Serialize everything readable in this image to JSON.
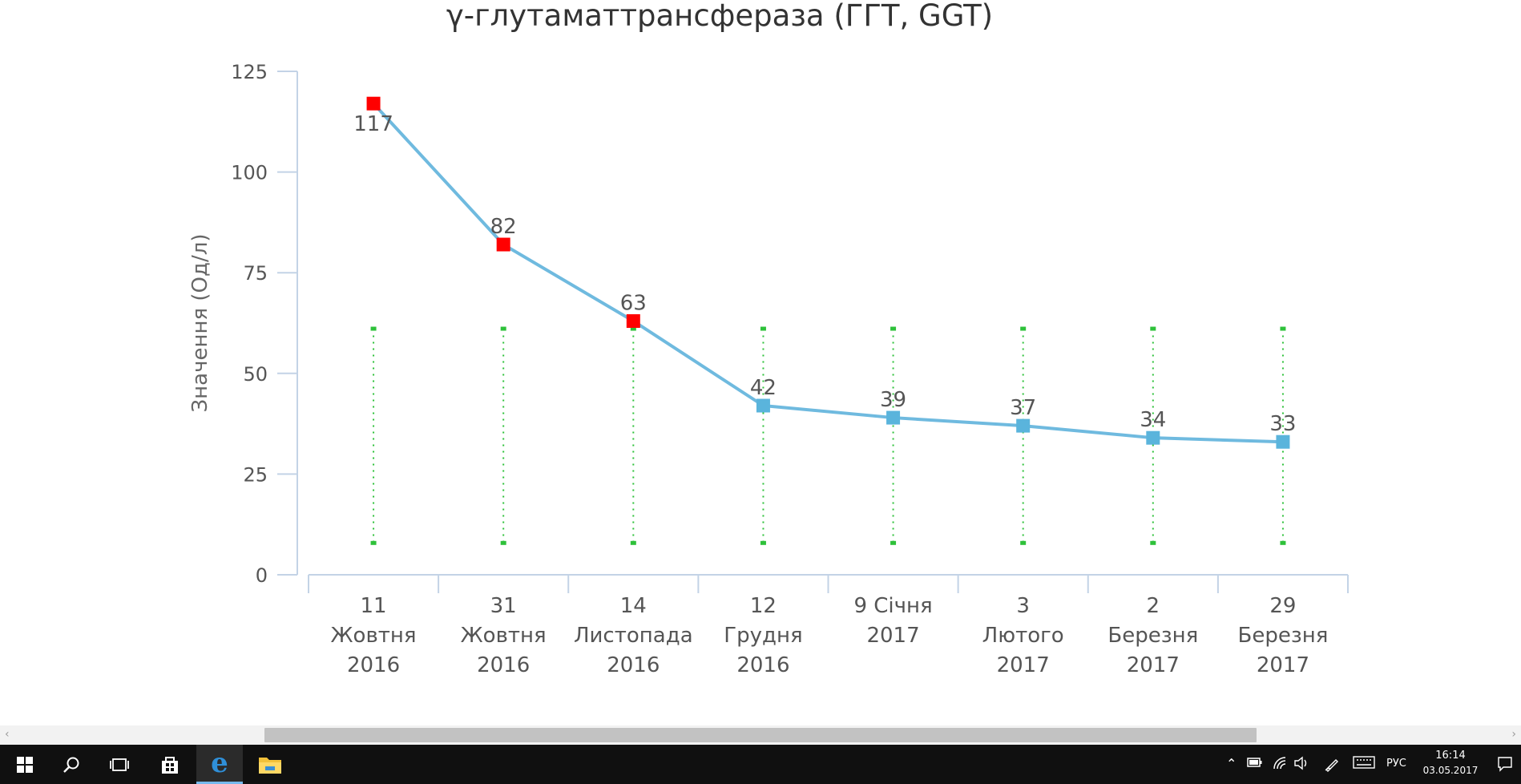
{
  "chart_data": {
    "type": "line",
    "title": "γ-глутаматтрансфераза (ГГТ, GGT)",
    "ylabel": "Значення (Од/л)",
    "ylim": [
      0,
      125
    ],
    "yticks": [
      0,
      25,
      50,
      75,
      100,
      125
    ],
    "categories": [
      [
        "11",
        "Жовтня",
        "2016"
      ],
      [
        "31",
        "Жовтня",
        "2016"
      ],
      [
        "14",
        "Листопада",
        "2016"
      ],
      [
        "12",
        "Грудня",
        "2016"
      ],
      [
        "9 Січня",
        "2017"
      ],
      [
        "3",
        "Лютого",
        "2017"
      ],
      [
        "2",
        "Березня",
        "2017"
      ],
      [
        "29",
        "Березня",
        "2017"
      ]
    ],
    "values": [
      117,
      82,
      63,
      42,
      39,
      37,
      34,
      33
    ],
    "data_labels": [
      "117",
      "82",
      "63",
      "42",
      "39",
      "37",
      "34",
      "33"
    ],
    "point_colors": [
      "#ff0000",
      "#ff0000",
      "#ff0000",
      "#5ab4dc",
      "#5ab4dc",
      "#5ab4dc",
      "#5ab4dc",
      "#5ab4dc"
    ],
    "line_color": "#6fbadf",
    "reference_range": {
      "low": 8,
      "high": 61,
      "color": "#2ec13a"
    },
    "grid": false,
    "legend": "none"
  },
  "taskbar": {
    "start_icon": "windows-logo-icon",
    "search_icon": "search-icon",
    "task_view_icon": "task-view-icon",
    "store_icon": "store-icon",
    "edge_icon": "edge-browser-icon",
    "explorer_icon": "file-explorer-icon",
    "language": "РУС",
    "time": "16:14",
    "date": "03.05.2017"
  }
}
